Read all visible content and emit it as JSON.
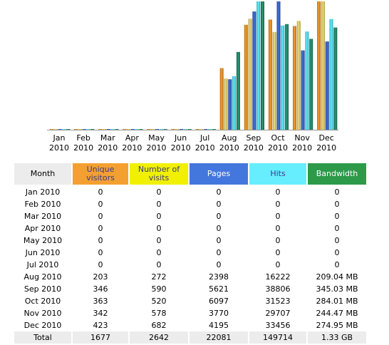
{
  "chart_data": {
    "type": "bar",
    "categories": [
      [
        "Jan",
        "2010"
      ],
      [
        "Feb",
        "2010"
      ],
      [
        "Mar",
        "2010"
      ],
      [
        "Apr",
        "2010"
      ],
      [
        "May",
        "2010"
      ],
      [
        "Jun",
        "2010"
      ],
      [
        "Jul",
        "2010"
      ],
      [
        "Aug",
        "2010"
      ],
      [
        "Sep",
        "2010"
      ],
      [
        "Oct",
        "2010"
      ],
      [
        "Nov",
        "2010"
      ],
      [
        "Dec",
        "2010"
      ]
    ],
    "series": [
      {
        "key": "unique",
        "values": [
          0,
          0,
          0,
          0,
          0,
          0,
          0,
          203,
          346,
          363,
          342,
          423
        ],
        "color": "#f4a030",
        "dark": "#b56a10"
      },
      {
        "key": "visits",
        "values": [
          0,
          0,
          0,
          0,
          0,
          0,
          0,
          272,
          590,
          520,
          578,
          682
        ],
        "color": "#f0e080",
        "dark": "#a89a40"
      },
      {
        "key": "pages",
        "values": [
          0,
          0,
          0,
          0,
          0,
          0,
          0,
          2398,
          5621,
          6097,
          3770,
          4195
        ],
        "color": "#4477dd",
        "dark": "#1f3f8f"
      },
      {
        "key": "hits",
        "values": [
          0,
          0,
          0,
          0,
          0,
          0,
          0,
          16222,
          38806,
          31523,
          29707,
          33456
        ],
        "color": "#66eeff",
        "dark": "#2aa7b8"
      },
      {
        "key": "bandwidth_mb",
        "values": [
          0,
          0,
          0,
          0,
          0,
          0,
          0,
          209.04,
          345.03,
          284.01,
          244.47,
          274.95
        ],
        "color": "#2d9a7a",
        "dark": "#14604a"
      }
    ]
  },
  "table": {
    "headers": {
      "month": "Month",
      "unique": "Unique visitors",
      "visits": "Number of visits",
      "pages": "Pages",
      "hits": "Hits",
      "bandwidth": "Bandwidth"
    },
    "rows": [
      {
        "month": "Jan 2010",
        "unique": "0",
        "visits": "0",
        "pages": "0",
        "hits": "0",
        "bandwidth": "0"
      },
      {
        "month": "Feb 2010",
        "unique": "0",
        "visits": "0",
        "pages": "0",
        "hits": "0",
        "bandwidth": "0"
      },
      {
        "month": "Mar 2010",
        "unique": "0",
        "visits": "0",
        "pages": "0",
        "hits": "0",
        "bandwidth": "0"
      },
      {
        "month": "Apr 2010",
        "unique": "0",
        "visits": "0",
        "pages": "0",
        "hits": "0",
        "bandwidth": "0"
      },
      {
        "month": "May 2010",
        "unique": "0",
        "visits": "0",
        "pages": "0",
        "hits": "0",
        "bandwidth": "0"
      },
      {
        "month": "Jun 2010",
        "unique": "0",
        "visits": "0",
        "pages": "0",
        "hits": "0",
        "bandwidth": "0"
      },
      {
        "month": "Jul 2010",
        "unique": "0",
        "visits": "0",
        "pages": "0",
        "hits": "0",
        "bandwidth": "0"
      },
      {
        "month": "Aug 2010",
        "unique": "203",
        "visits": "272",
        "pages": "2398",
        "hits": "16222",
        "bandwidth": "209.04 MB"
      },
      {
        "month": "Sep 2010",
        "unique": "346",
        "visits": "590",
        "pages": "5621",
        "hits": "38806",
        "bandwidth": "345.03 MB"
      },
      {
        "month": "Oct 2010",
        "unique": "363",
        "visits": "520",
        "pages": "6097",
        "hits": "31523",
        "bandwidth": "284.01 MB"
      },
      {
        "month": "Nov 2010",
        "unique": "342",
        "visits": "578",
        "pages": "3770",
        "hits": "29707",
        "bandwidth": "244.47 MB"
      },
      {
        "month": "Dec 2010",
        "unique": "423",
        "visits": "682",
        "pages": "4195",
        "hits": "33456",
        "bandwidth": "274.95 MB"
      }
    ],
    "total": {
      "month": "Total",
      "unique": "1677",
      "visits": "2642",
      "pages": "22081",
      "hits": "149714",
      "bandwidth": "1.33 GB"
    }
  }
}
